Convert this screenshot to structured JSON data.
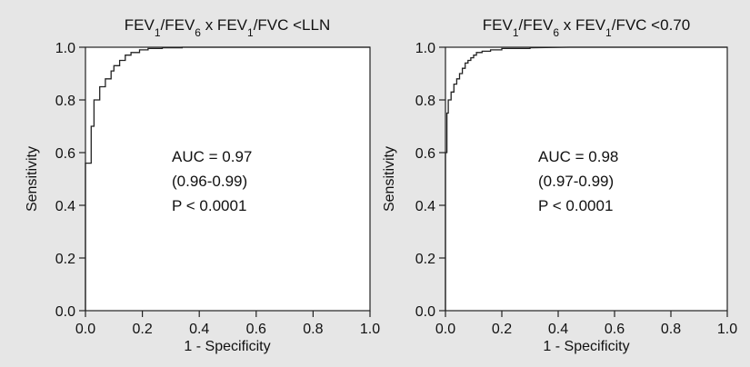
{
  "chart_data": [
    {
      "type": "line",
      "title": {
        "base1": "FEV",
        "sub1": "1",
        "mid": "/FEV",
        "sub2": "6",
        "mid2": " x FEV",
        "sub3": "1",
        "rest": "/FVC <LLN"
      },
      "xlabel": "1 - Specificity",
      "ylabel": "Sensitivity",
      "xlim": [
        0.0,
        1.0
      ],
      "ylim": [
        0.0,
        1.0
      ],
      "xticks": [
        "0.0",
        "0.2",
        "0.4",
        "0.6",
        "0.8",
        "1.0"
      ],
      "yticks": [
        "0.0",
        "0.2",
        "0.4",
        "0.6",
        "0.8",
        "1.0"
      ],
      "annotations": [
        "AUC = 0.97",
        "(0.96-0.99)",
        "P < 0.0001"
      ],
      "grid": false,
      "series": [
        {
          "x": [
            0.0,
            0.0,
            0.02,
            0.02,
            0.03,
            0.03,
            0.05,
            0.05,
            0.07,
            0.07,
            0.09,
            0.09,
            0.1,
            0.1,
            0.12,
            0.12,
            0.14,
            0.14,
            0.16,
            0.16,
            0.19,
            0.19,
            0.22,
            0.22,
            0.27,
            0.27,
            0.34,
            0.34,
            0.52,
            1.0
          ],
          "y": [
            0.0,
            0.56,
            0.56,
            0.7,
            0.7,
            0.8,
            0.8,
            0.85,
            0.85,
            0.88,
            0.88,
            0.91,
            0.91,
            0.93,
            0.93,
            0.95,
            0.95,
            0.97,
            0.97,
            0.98,
            0.98,
            0.99,
            0.99,
            0.995,
            0.995,
            0.998,
            0.998,
            1.0,
            1.0,
            1.0
          ]
        }
      ]
    },
    {
      "type": "line",
      "title": {
        "base1": "FEV",
        "sub1": "1",
        "mid": "/FEV",
        "sub2": "6",
        "mid2": " x FEV",
        "sub3": "1",
        "rest": "/FVC <0.70"
      },
      "xlabel": "1 - Specificity",
      "ylabel": "Sensitivity",
      "xlim": [
        0.0,
        1.0
      ],
      "ylim": [
        0.0,
        1.0
      ],
      "xticks": [
        "0.0",
        "0.2",
        "0.4",
        "0.6",
        "0.8",
        "1.0"
      ],
      "yticks": [
        "0.0",
        "0.2",
        "0.4",
        "0.6",
        "0.8",
        "1.0"
      ],
      "annotations": [
        "AUC = 0.98",
        "(0.97-0.99)",
        "P < 0.0001"
      ],
      "grid": false,
      "series": [
        {
          "x": [
            0.0,
            0.0,
            0.005,
            0.005,
            0.01,
            0.01,
            0.02,
            0.02,
            0.03,
            0.03,
            0.04,
            0.04,
            0.05,
            0.05,
            0.06,
            0.06,
            0.07,
            0.07,
            0.08,
            0.08,
            0.09,
            0.09,
            0.1,
            0.1,
            0.11,
            0.11,
            0.13,
            0.13,
            0.16,
            0.16,
            0.2,
            0.2,
            0.3,
            0.3,
            0.44,
            1.0
          ],
          "y": [
            0.0,
            0.6,
            0.6,
            0.75,
            0.75,
            0.8,
            0.8,
            0.83,
            0.83,
            0.86,
            0.86,
            0.88,
            0.88,
            0.9,
            0.9,
            0.92,
            0.92,
            0.94,
            0.94,
            0.95,
            0.95,
            0.96,
            0.96,
            0.97,
            0.97,
            0.98,
            0.98,
            0.985,
            0.985,
            0.99,
            0.99,
            0.995,
            0.995,
            0.998,
            1.0,
            1.0
          ]
        }
      ]
    }
  ]
}
